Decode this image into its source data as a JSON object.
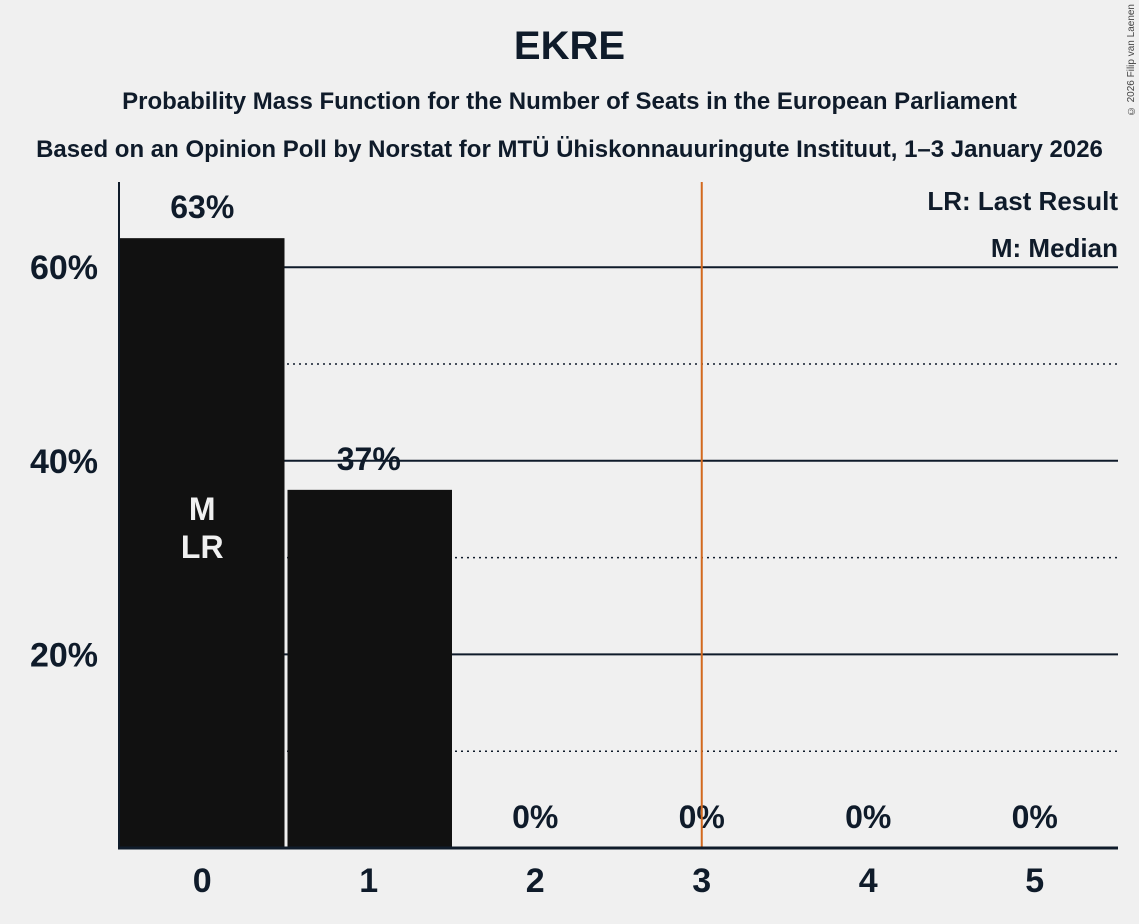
{
  "header": {
    "title": "EKRE",
    "subtitle": "Probability Mass Function for the Number of Seats in the European Parliament",
    "subtitle2": "Based on an Opinion Poll by Norstat for MTÜ Ühiskonnauuringute Instituut, 1–3 January 2026",
    "copyright": "© 2026 Filip van Laenen"
  },
  "legend": {
    "lr": "LR: Last Result",
    "m": "M: Median"
  },
  "colors": {
    "background": "#f0f0f0",
    "bar": "#111111",
    "text": "#0f1b2a",
    "majority_line": "#d2691e"
  },
  "chart_data": {
    "type": "bar",
    "title": "EKRE",
    "subtitle": "Probability Mass Function for the Number of Seats in the European Parliament",
    "categories": [
      "0",
      "1",
      "2",
      "3",
      "4",
      "5"
    ],
    "values": [
      63,
      37,
      0,
      0,
      0,
      0
    ],
    "value_labels": [
      "63%",
      "37%",
      "0%",
      "0%",
      "0%",
      "0%"
    ],
    "xlabel": "",
    "ylabel": "",
    "ylim": [
      0,
      68
    ],
    "yticks": [
      20,
      40,
      60
    ],
    "ytick_labels": [
      "20%",
      "40%",
      "60%"
    ],
    "minor_gridlines": [
      10,
      30,
      50
    ],
    "bar_annotations": [
      {
        "category": "0",
        "lines": [
          "M",
          "LR"
        ]
      }
    ],
    "vertical_marker": {
      "x": 3.5,
      "color": "#d2691e"
    },
    "legend": [
      "LR: Last Result",
      "M: Median"
    ],
    "grid": true
  }
}
